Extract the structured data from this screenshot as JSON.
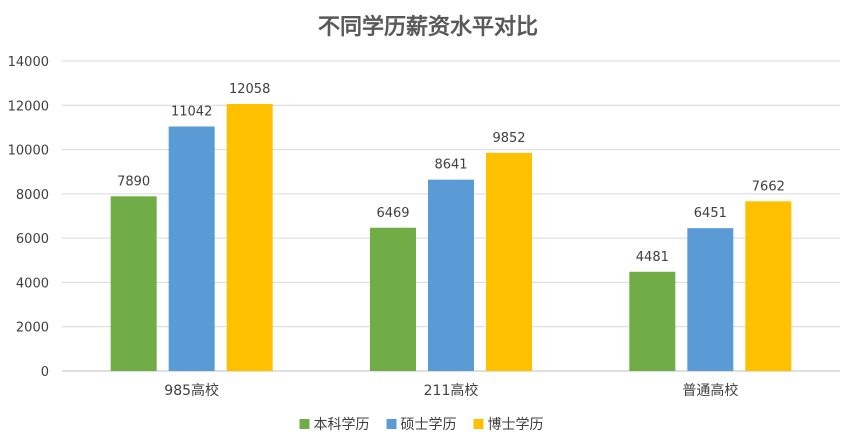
{
  "chart_data": {
    "type": "bar",
    "title": "不同学历薪资水平对比",
    "categories": [
      "985高校",
      "211高校",
      "普通高校"
    ],
    "series": [
      {
        "name": "本科学历",
        "color": "#70ad47",
        "values": [
          7890,
          6469,
          4481
        ]
      },
      {
        "name": "硕士学历",
        "color": "#5b9bd5",
        "values": [
          11042,
          8641,
          6451
        ]
      },
      {
        "name": "博士学历",
        "color": "#ffc000",
        "values": [
          12058,
          9852,
          7662
        ]
      }
    ],
    "ylim": [
      0,
      14000
    ],
    "yticks": [
      0,
      2000,
      4000,
      6000,
      8000,
      10000,
      12000,
      14000
    ],
    "grid": true,
    "legend": "bottom"
  }
}
